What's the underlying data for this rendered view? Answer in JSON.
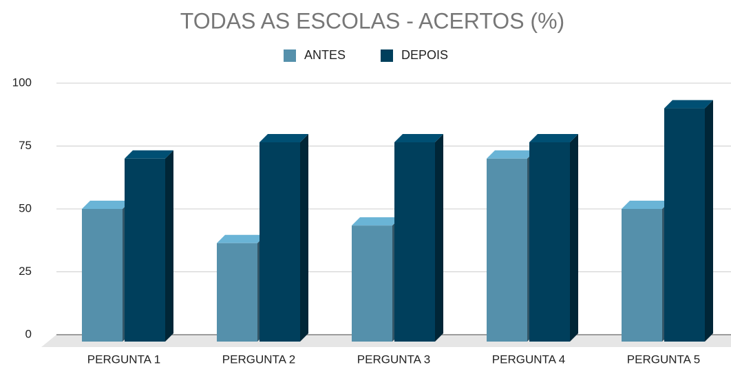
{
  "chart_data": {
    "type": "bar3d",
    "title": "TODAS AS ESCOLAS - ACERTOS (%)",
    "categories": [
      "PERGUNTA 1",
      "PERGUNTA 2",
      "PERGUNTA 3",
      "PERGUNTA 4",
      "PERGUNTA 5"
    ],
    "series": [
      {
        "name": "ANTES",
        "color": "#5590ab",
        "values": [
          50,
          36.4,
          43.4,
          70,
          50
        ]
      },
      {
        "name": "DEPOIS",
        "color": "#003f5c",
        "values": [
          70,
          76.5,
          76.5,
          76.5,
          90
        ]
      }
    ],
    "ylim": [
      0,
      100
    ],
    "yticks": [
      0,
      25,
      50,
      75,
      100
    ],
    "grid": true,
    "legend": "top"
  }
}
